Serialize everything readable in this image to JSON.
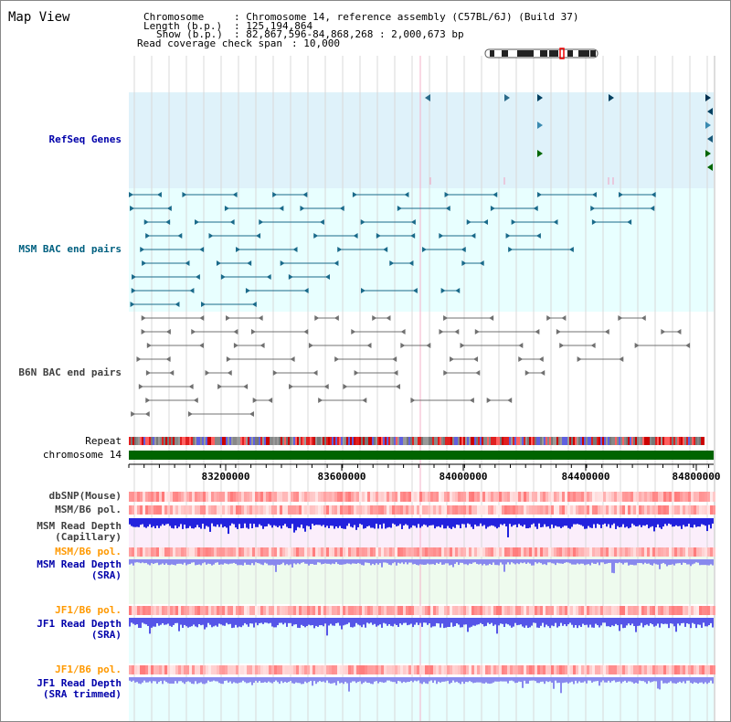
{
  "page": {
    "title": "Map View"
  },
  "info": {
    "chromosome_label": "Chromosome",
    "chromosome_value": ": Chromosome 14, reference assembly (C57BL/6J) (Build 37)",
    "length_label": "Length (b.p.)",
    "length_value": ": 125,194,864",
    "show_label": "Show (b.p.)",
    "show_value": ": 82,867,596-84,868,268 : 2,000,673 bp",
    "coverage_label": "Read coverage check span",
    "coverage_value": ": 10,000"
  },
  "tracks": {
    "refseq": "RefSeq Genes",
    "msm_bac": "MSM BAC end pairs",
    "b6n_bac": "B6N BAC end pairs",
    "repeat": "Repeat",
    "chromosome": "chromosome 14",
    "dbsnp": "dbSNP(Mouse)",
    "msm_b6_pol_1": "MSM/B6 pol.",
    "msm_read_depth_cap": "MSM Read Depth\n(Capillary)",
    "msm_b6_pol_2": "MSM/B6 pol.",
    "msm_read_depth_sra": "MSM Read Depth\n(SRA)",
    "jf1_b6_pol_1": "JF1/B6 pol.",
    "jf1_read_depth_sra": "JF1 Read Depth\n(SRA)",
    "jf1_b6_pol_2": "JF1/B6 pol.",
    "jf1_read_depth_trim": "JF1 Read Depth\n(SRA trimmed)"
  },
  "axis": {
    "ticks": [
      "83200000",
      "83600000",
      "84000000",
      "84400000",
      "84800000"
    ]
  },
  "colors": {
    "refseq_bg": "#dff2fa",
    "msm_bac_bg": "#e8ffff",
    "blue_label": "#0000aa",
    "teal_label": "#006080",
    "gray_label": "#404040",
    "orange_label": "#ff9900",
    "chromosome_bar": "#006400",
    "depth_blue": "#2222dd",
    "depth_light": "#8888ee"
  },
  "icons": {
    "ideogram": "chromosome-ideogram"
  }
}
